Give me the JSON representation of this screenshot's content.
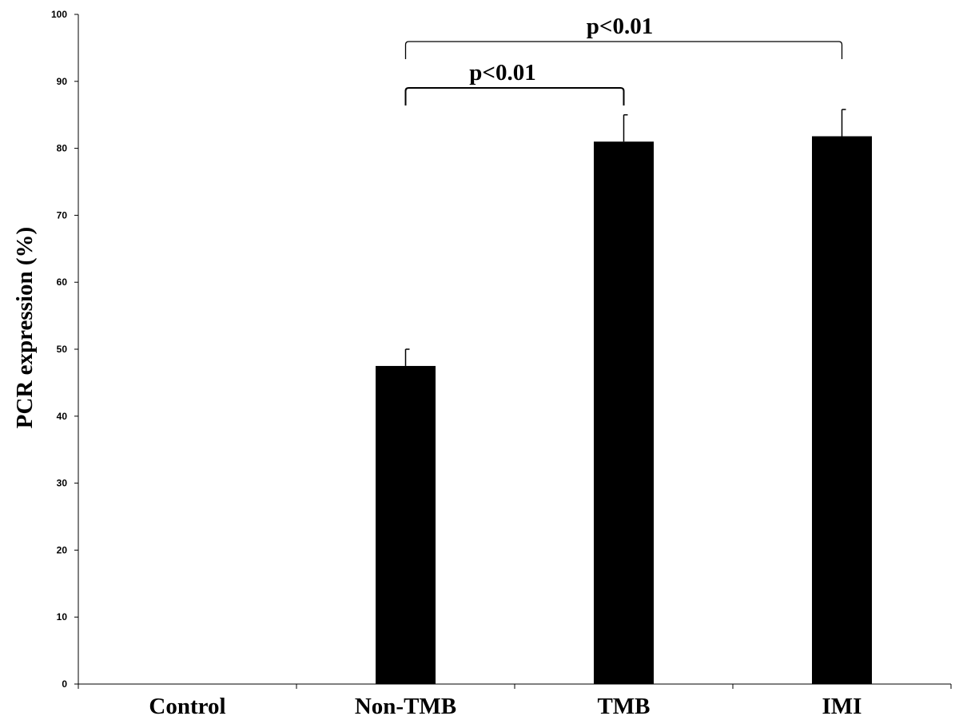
{
  "chart_data": {
    "type": "bar",
    "title": "",
    "xlabel": "",
    "ylabel": "PCR expression (%)",
    "ylim": [
      0,
      100
    ],
    "yticks": [
      0,
      10,
      20,
      30,
      40,
      50,
      60,
      70,
      80,
      90,
      100
    ],
    "grid": false,
    "categories": [
      "Control",
      "Non-TMB",
      "TMB",
      "IMI"
    ],
    "values": [
      0,
      47.5,
      81,
      81.8
    ],
    "errors": [
      0,
      2.5,
      4,
      4
    ],
    "bar_color": "#000000",
    "annotations": [
      {
        "from": "Non-TMB",
        "to": "TMB",
        "text": "p<0.01"
      },
      {
        "from": "Non-TMB",
        "to": "IMI",
        "text": "p<0.01"
      }
    ]
  }
}
